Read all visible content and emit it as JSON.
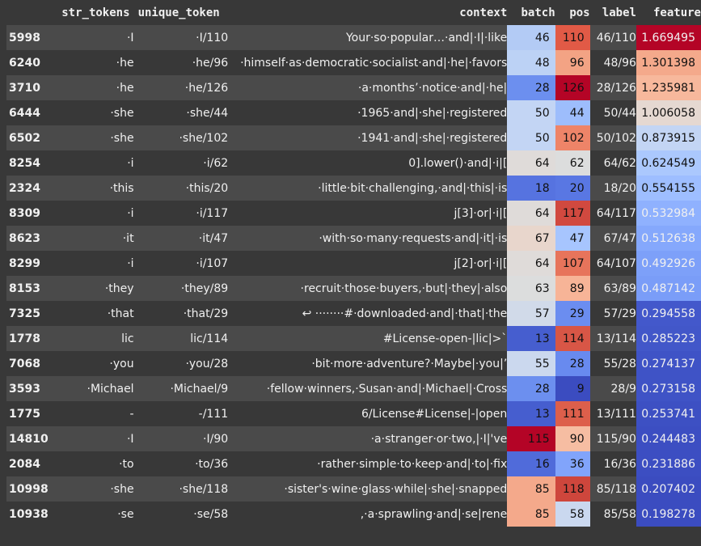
{
  "columns": [
    "str_tokens",
    "unique_token",
    "context",
    "batch",
    "pos",
    "label",
    "feature"
  ],
  "rows": [
    {
      "idx": "5998",
      "tok": "·I",
      "uniq": "·I/110",
      "ctx": "Your·so·popular…·and|·I|·like",
      "batch": "46",
      "pos": "110",
      "label": "46/110",
      "feature": "1.669495",
      "batch_bg": "#b3cbf5",
      "pos_bg": "#e15a46",
      "feat_bg": "#b40426",
      "feat_fg": "#f0f0f0"
    },
    {
      "idx": "6240",
      "tok": "·he",
      "uniq": "·he/96",
      "ctx": "·himself·as·democratic·socialist·and|·he|·favors",
      "batch": "48",
      "pos": "96",
      "label": "48/96",
      "feature": "1.301398",
      "batch_bg": "#bcd2f5",
      "pos_bg": "#f3a384",
      "feat_bg": "#f4a98b",
      "feat_fg": "#111111"
    },
    {
      "idx": "3710",
      "tok": "·he",
      "uniq": "·he/126",
      "ctx": "·a·months’·notice·and|·he|",
      "batch": "28",
      "pos": "126",
      "label": "28/126",
      "feature": "1.235981",
      "batch_bg": "#6c8fef",
      "pos_bg": "#b40426",
      "feat_bg": "#f7b89c",
      "feat_fg": "#111111"
    },
    {
      "idx": "6444",
      "tok": "·she",
      "uniq": "·she/44",
      "ctx": "·1965·and|·she|·registered",
      "batch": "50",
      "pos": "44",
      "label": "50/44",
      "feature": "1.006058",
      "batch_bg": "#c3d5f4",
      "pos_bg": "#9dbdfc",
      "feat_bg": "#e5d8d1",
      "feat_fg": "#111111"
    },
    {
      "idx": "6502",
      "tok": "·she",
      "uniq": "·she/102",
      "ctx": "·1941·and|·she|·registered",
      "batch": "50",
      "pos": "102",
      "label": "50/102",
      "feature": "0.873915",
      "batch_bg": "#c3d5f4",
      "pos_bg": "#ee8468",
      "feat_bg": "#c3d5f4",
      "feat_fg": "#111111"
    },
    {
      "idx": "8254",
      "tok": "·i",
      "uniq": "·i/62",
      "ctx": "0].lower()·and|·i|[",
      "batch": "64",
      "pos": "62",
      "label": "64/62",
      "feature": "0.624549",
      "batch_bg": "#dfdbd9",
      "pos_bg": "#dcdddd",
      "feat_bg": "#abc8fd",
      "feat_fg": "#111111"
    },
    {
      "idx": "2324",
      "tok": "·this",
      "uniq": "·this/20",
      "ctx": "·little·bit·challenging,·and|·this|·is",
      "batch": "18",
      "pos": "20",
      "label": "18/20",
      "feature": "0.554155",
      "batch_bg": "#5673e0",
      "pos_bg": "#5977e3",
      "feat_bg": "#9ebeff",
      "feat_fg": "#111111"
    },
    {
      "idx": "8309",
      "tok": "·i",
      "uniq": "·i/117",
      "ctx": "j[3]·or|·i|[",
      "batch": "64",
      "pos": "117",
      "label": "64/117",
      "feature": "0.532984",
      "batch_bg": "#dfdbd9",
      "pos_bg": "#d1493f",
      "feat_bg": "#8fb1fe",
      "feat_fg": "#f0f0f0"
    },
    {
      "idx": "8623",
      "tok": "·it",
      "uniq": "·it/47",
      "ctx": "·with·so·many·requests·and|·it|·is",
      "batch": "67",
      "pos": "47",
      "label": "67/47",
      "feature": "0.512638",
      "batch_bg": "#e8d6cc",
      "pos_bg": "#a7c5fe",
      "feat_bg": "#85a8fc",
      "feat_fg": "#f0f0f0"
    },
    {
      "idx": "8299",
      "tok": "·i",
      "uniq": "·i/107",
      "ctx": "j[2]·or|·i|[",
      "batch": "64",
      "pos": "107",
      "label": "64/107",
      "feature": "0.492926",
      "batch_bg": "#dfdbd9",
      "pos_bg": "#e7745b",
      "feat_bg": "#7da0f9",
      "feat_fg": "#f0f0f0"
    },
    {
      "idx": "8153",
      "tok": "·they",
      "uniq": "·they/89",
      "ctx": "·recruit·those·buyers,·but|·they|·also",
      "batch": "63",
      "pos": "89",
      "label": "63/89",
      "feature": "0.487142",
      "batch_bg": "#dcdddd",
      "pos_bg": "#f7b497",
      "feat_bg": "#7a9df8",
      "feat_fg": "#f0f0f0"
    },
    {
      "idx": "7325",
      "tok": "·that",
      "uniq": "·that/29",
      "ctx": "↩ ········#·downloaded·and|·that|·the",
      "batch": "57",
      "pos": "29",
      "label": "57/29",
      "feature": "0.294558",
      "batch_bg": "#d1dae9",
      "pos_bg": "#6b8df0",
      "feat_bg": "#4358cb",
      "feat_fg": "#f0f0f0"
    },
    {
      "idx": "1778",
      "tok": "lic",
      "uniq": "lic/114",
      "ctx": "#License-open-|lic|>`",
      "batch": "13",
      "pos": "114",
      "label": "13/114",
      "feature": "0.285223",
      "batch_bg": "#465ecf",
      "pos_bg": "#d85646",
      "feat_bg": "#4257c9",
      "feat_fg": "#f0f0f0"
    },
    {
      "idx": "7068",
      "tok": "·you",
      "uniq": "·you/28",
      "ctx": "·bit·more·adventure?·Maybe|·you|’",
      "batch": "55",
      "pos": "28",
      "label": "55/28",
      "feature": "0.274137",
      "batch_bg": "#cbd8ee",
      "pos_bg": "#688aef",
      "feat_bg": "#3f53c6",
      "feat_fg": "#f0f0f0"
    },
    {
      "idx": "3593",
      "tok": "·Michael",
      "uniq": "·Michael/9",
      "ctx": "·fellow·winners,·Susan·and|·Michael|·Cross",
      "batch": "28",
      "pos": "9",
      "label": "28/9",
      "feature": "0.273158",
      "batch_bg": "#6c8fef",
      "pos_bg": "#3b4cc0",
      "feat_bg": "#3f53c6",
      "feat_fg": "#f0f0f0"
    },
    {
      "idx": "1775",
      "tok": "-",
      "uniq": "-/111",
      "ctx": "6/License#License|-|open",
      "batch": "13",
      "pos": "111",
      "label": "13/111",
      "feature": "0.253741",
      "batch_bg": "#465ecf",
      "pos_bg": "#dd5f4b",
      "feat_bg": "#3d50c3",
      "feat_fg": "#f0f0f0"
    },
    {
      "idx": "14810",
      "tok": "·I",
      "uniq": "·I/90",
      "ctx": "·a·stranger·or·two,|·I|'ve",
      "batch": "115",
      "pos": "90",
      "label": "115/90",
      "feature": "0.244483",
      "batch_bg": "#b40426",
      "pos_bg": "#f6bda2",
      "feat_bg": "#3c4ec2",
      "feat_fg": "#f0f0f0"
    },
    {
      "idx": "2084",
      "tok": "·to",
      "uniq": "·to/36",
      "ctx": "·rather·simple·to·keep·and|·to|·fix",
      "batch": "16",
      "pos": "36",
      "label": "16/36",
      "feature": "0.231886",
      "batch_bg": "#506bda",
      "pos_bg": "#81a4fb",
      "feat_bg": "#3c4ec2",
      "feat_fg": "#f0f0f0"
    },
    {
      "idx": "10998",
      "tok": "·she",
      "uniq": "·she/118",
      "ctx": "·sister's·wine·glass·while|·she|·snapped",
      "batch": "85",
      "pos": "118",
      "label": "85/118",
      "feature": "0.207402",
      "batch_bg": "#f4a98b",
      "pos_bg": "#ce463c",
      "feat_bg": "#3b4cc0",
      "feat_fg": "#f0f0f0"
    },
    {
      "idx": "10938",
      "tok": "·se",
      "uniq": "·se/58",
      "ctx": ",·a·sprawling·and|·se|rene",
      "batch": "85",
      "pos": "58",
      "label": "85/58",
      "feature": "0.198278",
      "batch_bg": "#f4a98b",
      "pos_bg": "#cad8ef",
      "feat_bg": "#3b4cc0",
      "feat_fg": "#f0f0f0"
    }
  ]
}
